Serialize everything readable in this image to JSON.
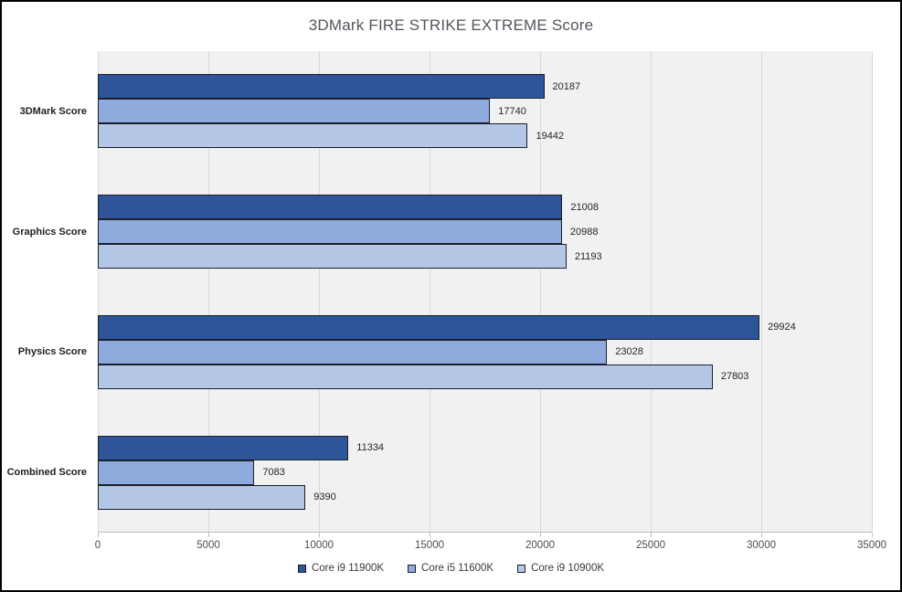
{
  "chart_data": {
    "type": "bar",
    "orientation": "horizontal",
    "title": "3DMark FIRE STRIKE EXTREME Score",
    "categories": [
      "3DMark Score",
      "Graphics Score",
      "Physics Score",
      "Combined Score"
    ],
    "series": [
      {
        "name": "Core i9 11900K",
        "color": "#2E5597",
        "values": [
          20187,
          21008,
          29924,
          11334
        ]
      },
      {
        "name": "Core i5 11600K",
        "color": "#8FAADC",
        "values": [
          17740,
          20988,
          23028,
          7083
        ]
      },
      {
        "name": "Core i9 10900K",
        "color": "#B4C7E7",
        "values": [
          19442,
          21193,
          27803,
          9390
        ]
      }
    ],
    "xlim": [
      0,
      35000
    ],
    "x_ticks": [
      0,
      5000,
      10000,
      15000,
      20000,
      25000,
      30000,
      35000
    ],
    "xlabel": "",
    "ylabel": "",
    "grid": "vertical",
    "legend_position": "bottom",
    "plot_background": "#F1F1F2",
    "gridline_color": "#D9D9D9",
    "bar_border_color": "#1B1F2A",
    "title_color": "#54545E"
  }
}
